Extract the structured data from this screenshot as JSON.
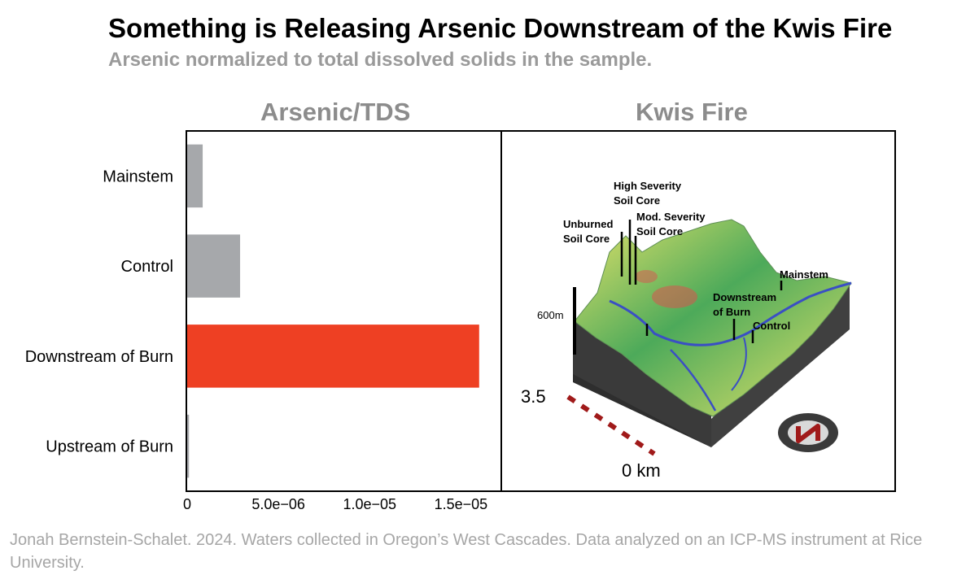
{
  "title": "Something is Releasing Arsenic Downstream of the Kwis Fire",
  "subtitle": "Arsenic normalized to total dissolved solids in the sample.",
  "footer": "Jonah Bernstein-Schalet. 2024. Waters collected in Oregon’s West Cascades. Data analyzed on an ICP-MS instrument at Rice University.",
  "chart_data": {
    "type": "bar",
    "orientation": "horizontal",
    "title": "Arsenic/TDS",
    "xlabel": "",
    "ylabel": "",
    "categories": [
      "Mainstem",
      "Control",
      "Downstream of Burn",
      "Upstream of Burn"
    ],
    "values": [
      8.5e-07,
      2.9e-06,
      1.6e-05,
      1e-07
    ],
    "colors": [
      "#a6a8ab",
      "#a6a8ab",
      "#ee4023",
      "#a6a8ab"
    ],
    "xlim": [
      0,
      1.65e-05
    ],
    "xticks": [
      0,
      5e-06,
      1e-05,
      1.5e-05
    ],
    "xtick_labels": [
      "0",
      "5.0e−06",
      "1.0e−05",
      "1.5e−05"
    ],
    "grid": false
  },
  "map": {
    "title": "Kwis Fire",
    "labels": {
      "high_severity": [
        "High Severity",
        "Soil Core"
      ],
      "unburned": [
        "Unburned",
        "Soil Core"
      ],
      "mod_severity": [
        "Mod. Severity",
        "Soil Core"
      ],
      "mainstem": "Mainstem",
      "downstream": [
        "Downstream",
        "of Burn"
      ],
      "control": "Control",
      "elevation": "600m"
    },
    "scale": {
      "top_label": "3.5",
      "bottom_label": "0 km"
    },
    "colors": {
      "terrain_low": "#4daa5a",
      "terrain_high": "#e6e36a",
      "burn": "#d9534f",
      "river": "#3a4fc4",
      "block": "#3a3a3a"
    }
  }
}
